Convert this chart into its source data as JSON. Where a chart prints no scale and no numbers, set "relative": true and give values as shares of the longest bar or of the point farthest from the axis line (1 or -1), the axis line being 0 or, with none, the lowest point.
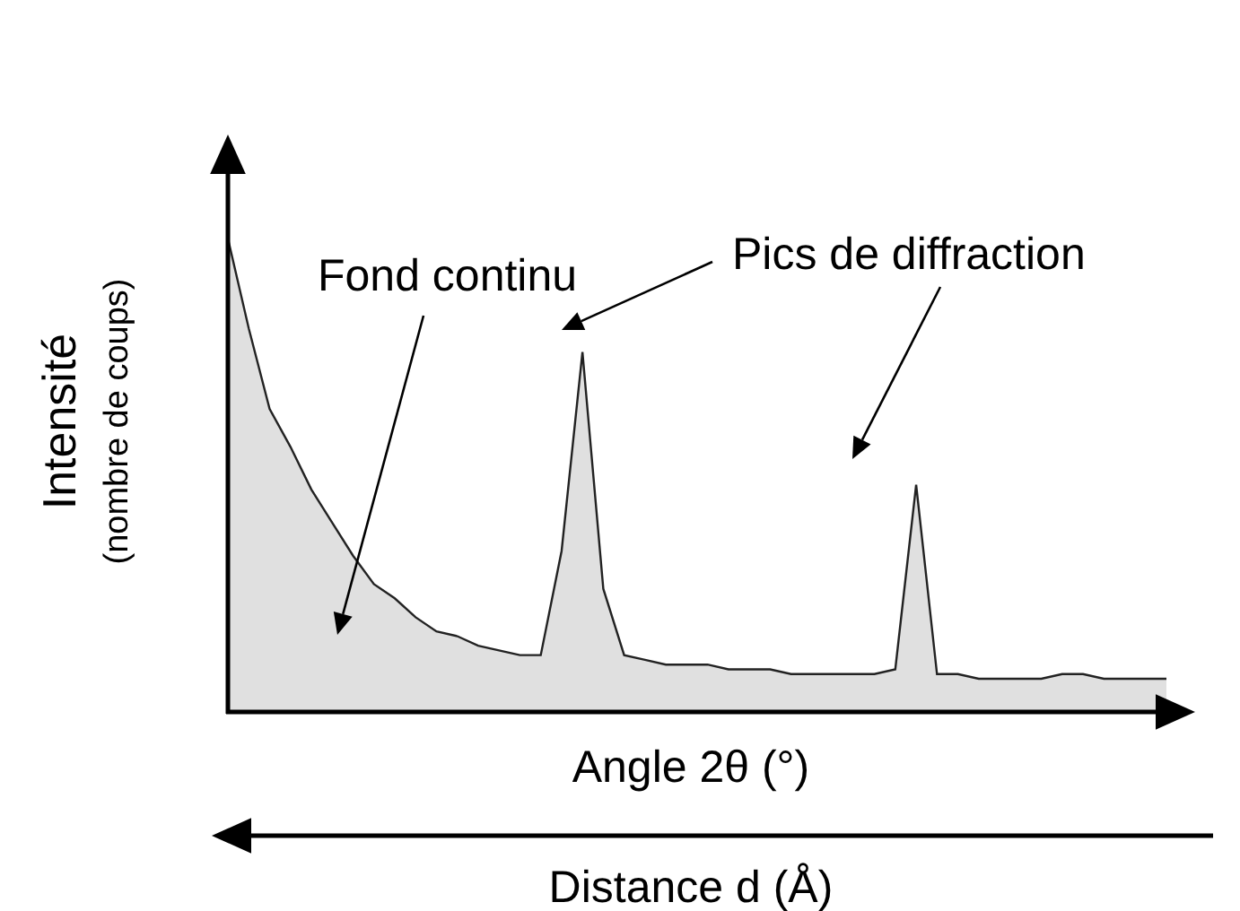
{
  "chart_data": {
    "type": "area",
    "relative": true,
    "xlabel": "Angle 2θ (°)",
    "ylabel": "Intensité\n(nombre de coups)",
    "categories": [
      null,
      null,
      null,
      null,
      null,
      null,
      null,
      null,
      null,
      null,
      null,
      null,
      null,
      null,
      null,
      null,
      null,
      null,
      null,
      null,
      null,
      null,
      null,
      null,
      null,
      null,
      null,
      null,
      null,
      null,
      null,
      null,
      null,
      null,
      null,
      null,
      null,
      null,
      null,
      null,
      null,
      null,
      null,
      null,
      null,
      null
    ],
    "series": [
      {
        "color": "#222222",
        "values": [
          1.0,
          0.81,
          0.64,
          0.56,
          0.47,
          0.4,
          0.33,
          0.27,
          0.24,
          0.2,
          0.17,
          0.16,
          0.14,
          0.13,
          0.12,
          0.12,
          0.34,
          0.76,
          0.26,
          0.12,
          0.11,
          0.1,
          0.1,
          0.1,
          0.09,
          0.09,
          0.09,
          0.08,
          0.08,
          0.08,
          0.08,
          0.08,
          0.09,
          0.48,
          0.08,
          0.08,
          0.07,
          0.07,
          0.07,
          0.07,
          0.08,
          0.08,
          0.07,
          0.07,
          0.07,
          0.07
        ]
      }
    ],
    "annotations": [
      "Fond continu",
      "Pics de diffraction",
      "Distance d (Å)"
    ]
  }
}
